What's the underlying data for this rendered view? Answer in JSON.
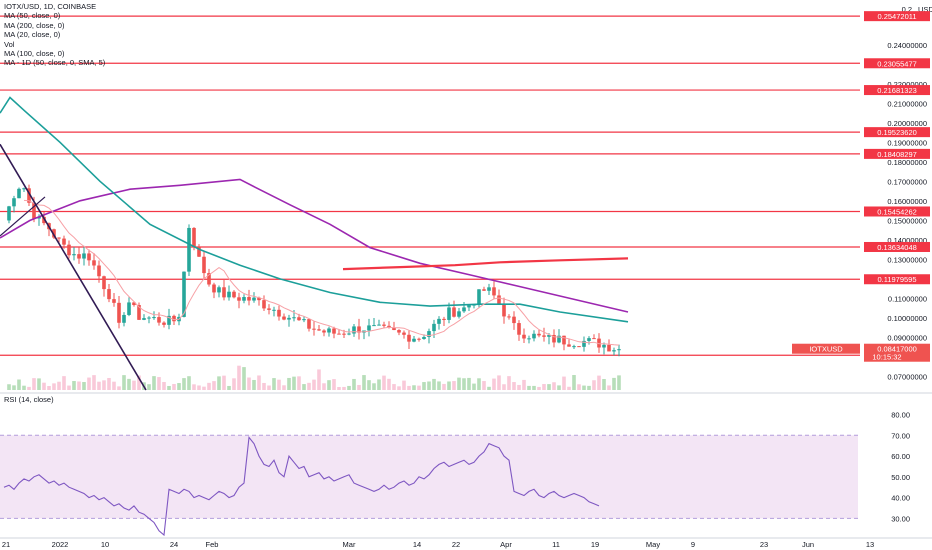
{
  "legend": {
    "title": "IOTX/USD, 1D, COINBASE",
    "ma50": "MA (50, close, 0)",
    "ma200": "MA (200, close, 0)",
    "ma20": "MA (20, close, 0)",
    "vol": "Vol",
    "ma100": "MA (100, close, 0)",
    "mtf": "MA - 1D (50, close, 0, SMA, 5)"
  },
  "rsi_label": "RSI (14, close)",
  "currency": "USD",
  "symbol_tag": "IOTXUSD",
  "price_tag": "0.08417000",
  "countdown_tag": "10:15:32",
  "colors": {
    "bull": "#26a69a",
    "bear": "#ef5350",
    "level": "#f23645",
    "ma_purple": "#9c27b0",
    "ma_teal": "#1c9f9a",
    "ma_pink": "#f7a1a6",
    "trend_dark": "#311b54",
    "rsi_band": "#f3e5f5",
    "rsi_line": "#7e57c2"
  },
  "chart_data": [
    {
      "type": "candlestick",
      "title": "IOTX/USD, 1D, COINBASE",
      "y_axis_ticks": [
        "0.24000000",
        "0.22000000",
        "0.21000000",
        "0.20000000",
        "0.19000000",
        "0.18000000",
        "0.17000000",
        "0.16000000",
        "0.15000000",
        "0.14000000",
        "0.13000000",
        "0.11000000",
        "0.10000000",
        "0.09000000",
        "0.07000000"
      ],
      "y_axis_top_label": "0.2",
      "x_axis_ticks": [
        "21",
        "2022",
        "10",
        "24",
        "Feb",
        "Mar",
        "14",
        "22",
        "Apr",
        "11",
        "19",
        "May",
        "9",
        "23",
        "Jun",
        "13"
      ],
      "ylim": [
        0.063,
        0.263
      ],
      "horizontal_levels": [
        "0.25472011",
        "0.23055477",
        "0.21681323",
        "0.19523620",
        "0.18408297",
        "0.15454262",
        "0.13634048",
        "0.11979595",
        "0.08081099"
      ],
      "last_price": "0.08417000",
      "series": [
        {
          "name": "MA (200, close, 0)",
          "segment": true,
          "values": [
            [
              0.1295,
              0.124
            ],
            [
              0.1275,
              0.1265
            ],
            [
              0.126,
              0.127
            ],
            [
              0.1265,
              0.129
            ],
            [
              0.129,
              0.1288
            ],
            [
              0.1288,
              0.13
            ]
          ]
        },
        {
          "name": "MA (50, close, 0)"
        },
        {
          "name": "MA (100, close, 0)"
        },
        {
          "name": "MA (20, close, 0)"
        }
      ]
    },
    {
      "type": "line",
      "title": "RSI (14, close)",
      "y_axis_ticks": [
        "80.00",
        "70.00",
        "60.00",
        "50.00",
        "40.00",
        "30.00"
      ],
      "ylim": [
        22,
        87
      ],
      "band": [
        30,
        70
      ],
      "values": [
        45,
        46,
        44,
        47,
        49,
        48,
        50,
        51,
        49,
        47,
        48,
        46,
        47,
        45,
        44,
        43,
        42,
        40,
        41,
        39,
        40,
        38,
        36,
        37,
        35,
        34,
        36,
        33,
        32,
        30,
        28,
        24,
        22,
        44,
        43,
        42,
        44,
        43,
        40,
        41,
        40,
        39,
        41,
        43,
        42,
        40,
        41,
        45,
        47,
        69,
        66,
        60,
        56,
        55,
        58,
        52,
        50,
        60,
        57,
        54,
        55,
        50,
        51,
        52,
        49,
        50,
        48,
        49,
        50,
        51,
        47,
        46,
        45,
        44,
        43,
        44,
        46,
        44,
        45,
        47,
        48,
        46,
        47,
        50,
        49,
        51,
        54,
        56,
        57,
        55,
        56,
        57,
        58,
        56,
        57,
        60,
        62,
        66,
        65,
        64,
        60,
        58,
        43,
        42,
        41,
        43,
        44,
        41,
        40,
        42,
        43,
        41,
        40,
        41,
        42,
        41,
        40,
        38,
        37,
        36
      ]
    }
  ]
}
